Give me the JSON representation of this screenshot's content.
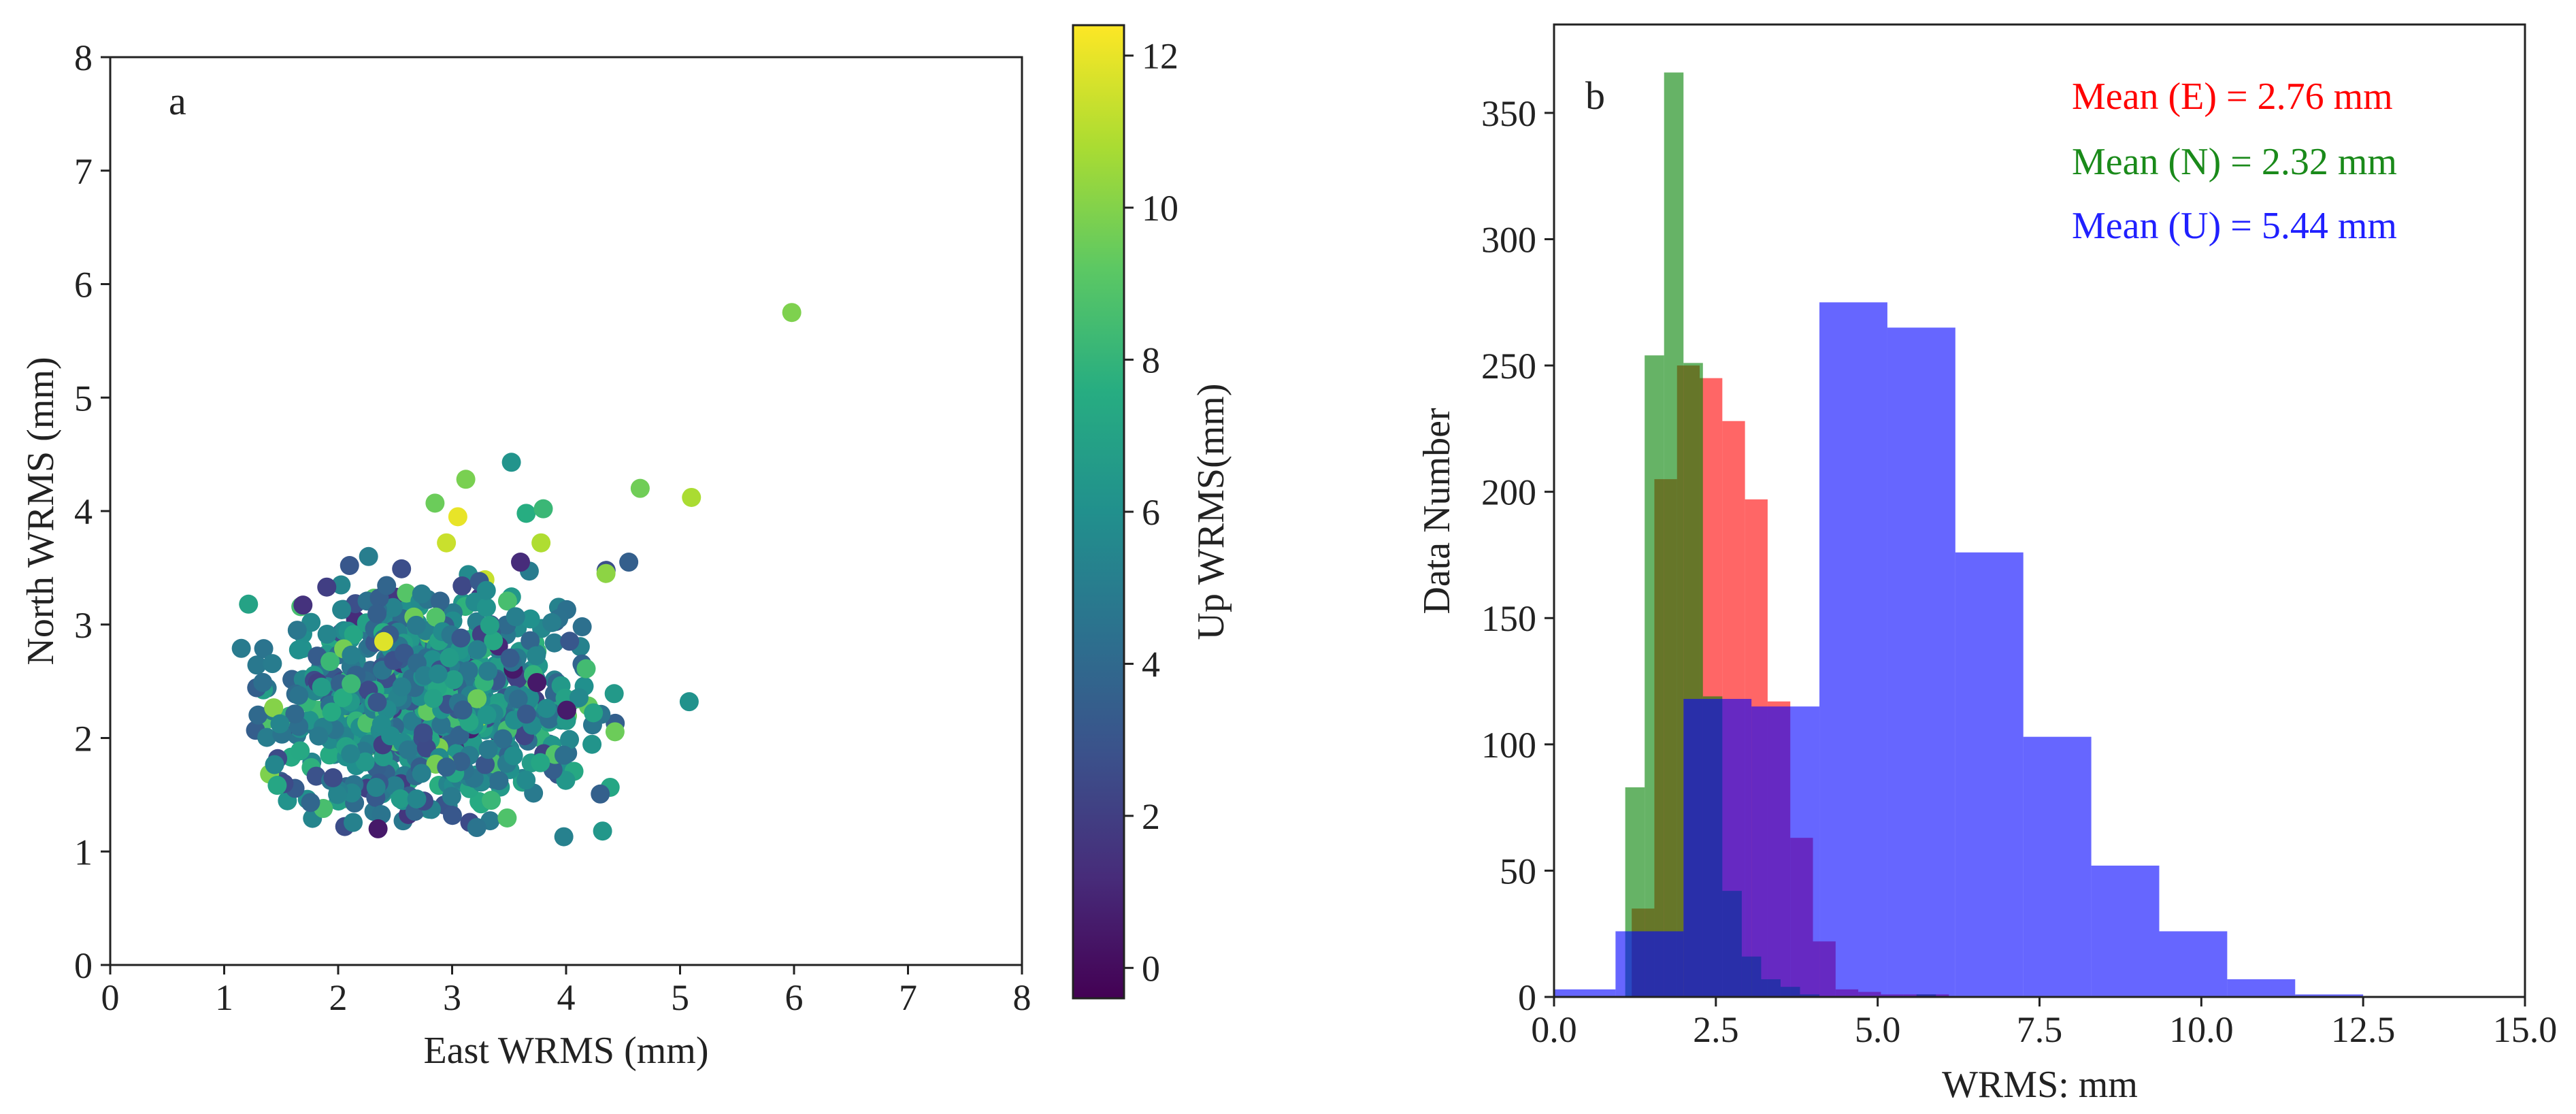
{
  "chart_data": [
    {
      "type": "scatter",
      "panel_label": "a",
      "xlabel": "East WRMS (mm)",
      "ylabel": "North WRMS (mm)",
      "xlim": [
        0,
        8
      ],
      "ylim": [
        0,
        8
      ],
      "xticks": [
        "0",
        "1",
        "2",
        "3",
        "4",
        "5",
        "6",
        "7",
        "8"
      ],
      "yticks": [
        "0",
        "1",
        "2",
        "3",
        "4",
        "5",
        "6",
        "7",
        "8"
      ],
      "colorbar": {
        "label": "Up WRMS(mm)",
        "range": [
          -0.4,
          12.4
        ],
        "ticks": [
          "0",
          "2",
          "4",
          "6",
          "8",
          "10",
          "12"
        ],
        "colormap": [
          "#440154",
          "#472c7a",
          "#3b518b",
          "#2c718e",
          "#21908d",
          "#27ad81",
          "#5cc863",
          "#aadc32",
          "#fde725"
        ]
      },
      "points": [
        {
          "x": 5.98,
          "y": 5.75,
          "c": 9.9
        },
        {
          "x": 4.65,
          "y": 4.2,
          "c": 9.6
        },
        {
          "x": 5.1,
          "y": 4.12,
          "c": 10.8
        },
        {
          "x": 3.12,
          "y": 4.28,
          "c": 9.8
        },
        {
          "x": 2.85,
          "y": 4.07,
          "c": 9.5
        },
        {
          "x": 3.05,
          "y": 3.95,
          "c": 12.0
        },
        {
          "x": 2.95,
          "y": 3.72,
          "c": 11.4
        },
        {
          "x": 3.52,
          "y": 4.43,
          "c": 6.2
        },
        {
          "x": 3.65,
          "y": 3.98,
          "c": 7.6
        },
        {
          "x": 3.8,
          "y": 4.02,
          "c": 8.2
        },
        {
          "x": 3.78,
          "y": 3.72,
          "c": 10.9
        },
        {
          "x": 4.55,
          "y": 3.55,
          "c": 3.5
        },
        {
          "x": 4.35,
          "y": 3.45,
          "c": 10.2
        },
        {
          "x": 5.08,
          "y": 2.32,
          "c": 6.1
        },
        {
          "x": 3.98,
          "y": 1.13,
          "c": 5.2
        },
        {
          "x": 4.32,
          "y": 1.18,
          "c": 6.4
        },
        {
          "x": 1.15,
          "y": 2.79,
          "c": 4.9
        },
        {
          "x": 2.4,
          "y": 2.85,
          "c": 11.8
        },
        {
          "x": 2.35,
          "y": 1.2,
          "c": 0.5
        },
        {
          "x": 3.6,
          "y": 3.55,
          "c": 1.2
        },
        {
          "x": 3.3,
          "y": 3.3,
          "c": 5.7
        },
        {
          "x": 2.1,
          "y": 3.52,
          "c": 3.1
        },
        {
          "x": 1.9,
          "y": 3.33,
          "c": 2.0
        }
      ],
      "cloud": {
        "count": 820,
        "seed": 7,
        "x_mean": 2.76,
        "x_sd": 0.68,
        "y_mean": 2.32,
        "y_sd": 0.5,
        "x_range": [
          1.2,
          4.45
        ],
        "y_range": [
          1.15,
          3.6
        ],
        "c_mean": 5.4,
        "c_sd": 1.9,
        "c_range": [
          0.5,
          11.8
        ]
      }
    },
    {
      "type": "histogram",
      "panel_label": "b",
      "xlabel": "WRMS: mm",
      "ylabel": "Data Number",
      "xlim": [
        0,
        15
      ],
      "ylim": [
        0,
        385
      ],
      "xticks": [
        "0.0",
        "2.5",
        "5.0",
        "7.5",
        "10.0",
        "12.5",
        "15.0"
      ],
      "yticks": [
        "0",
        "50",
        "100",
        "150",
        "200",
        "250",
        "300",
        "350"
      ],
      "alpha": 0.6,
      "series": [
        {
          "name": "E",
          "color": "#ff0000",
          "label": "Mean (E) = 2.76 mm",
          "bins": [
            1.2,
            1.55,
            1.9,
            2.25,
            2.6,
            2.95,
            3.3,
            3.65,
            4.0,
            4.35,
            4.7,
            5.05,
            5.4,
            5.75,
            6.1
          ],
          "counts": [
            35,
            205,
            250,
            245,
            228,
            197,
            117,
            63,
            22,
            3,
            2,
            1,
            1,
            1
          ]
        },
        {
          "name": "N",
          "color": "#008000",
          "label": "Mean (N) = 2.32 mm",
          "bins": [
            1.1,
            1.4,
            1.7,
            2.0,
            2.3,
            2.6,
            2.9,
            3.2,
            3.5,
            3.8,
            4.1,
            4.4,
            4.7,
            5.0,
            5.3,
            5.6,
            5.9
          ],
          "counts": [
            83,
            254,
            366,
            251,
            119,
            42,
            16,
            7,
            4,
            1,
            0,
            0,
            0,
            0,
            0,
            1
          ]
        },
        {
          "name": "U",
          "color": "#0000ff",
          "label": "Mean (U) = 5.44 mm",
          "bins": [
            0.0,
            0.95,
            2.0,
            3.05,
            4.1,
            5.15,
            6.2,
            7.25,
            8.3,
            9.35,
            10.4,
            11.45,
            12.5
          ],
          "counts": [
            3,
            26,
            118,
            115,
            275,
            265,
            176,
            103,
            52,
            26,
            7,
            1
          ]
        }
      ]
    }
  ]
}
